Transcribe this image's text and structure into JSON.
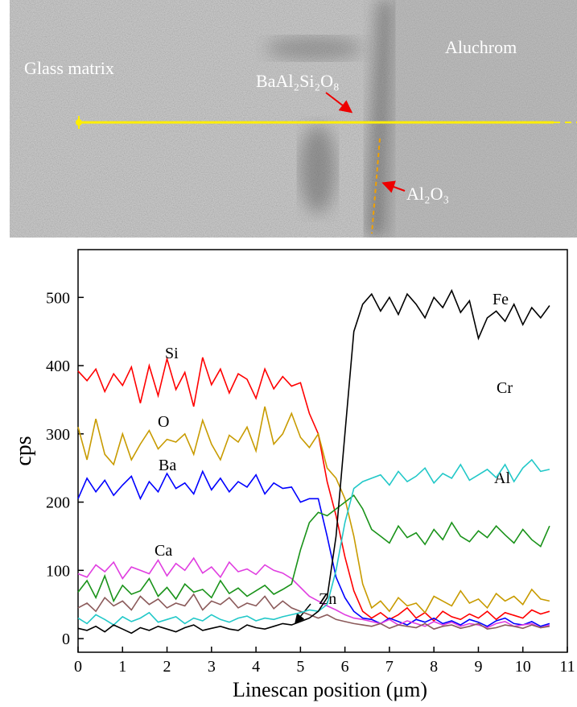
{
  "image_labels": [
    "Glass matrix",
    "Aluchrom",
    "BaAl₂Si₂O₈",
    "Al₂O₃"
  ],
  "chart_data": {
    "type": "line",
    "xlabel": "Linescan position (μm)",
    "ylabel": "cps",
    "xlim": [
      0,
      11
    ],
    "ylim": [
      -20,
      570
    ],
    "xticks": [
      0,
      1,
      2,
      3,
      4,
      5,
      6,
      7,
      8,
      9,
      10,
      11
    ],
    "yticks": [
      0,
      100,
      200,
      300,
      400,
      500
    ],
    "x": [
      0,
      0.2,
      0.4,
      0.6,
      0.8,
      1.0,
      1.2,
      1.4,
      1.6,
      1.8,
      2.0,
      2.2,
      2.4,
      2.6,
      2.8,
      3.0,
      3.2,
      3.4,
      3.6,
      3.8,
      4.0,
      4.2,
      4.4,
      4.6,
      4.8,
      5.0,
      5.2,
      5.4,
      5.6,
      5.8,
      6.0,
      6.2,
      6.4,
      6.6,
      6.8,
      7.0,
      7.2,
      7.4,
      7.6,
      7.8,
      8.0,
      8.2,
      8.4,
      8.6,
      8.8,
      9.0,
      9.2,
      9.4,
      9.6,
      9.8,
      10.0,
      10.2,
      10.4,
      10.6
    ],
    "series": [
      {
        "name": "Si",
        "color": "#ff0000",
        "values": [
          392,
          378,
          395,
          362,
          388,
          371,
          398,
          345,
          400,
          356,
          410,
          365,
          390,
          340,
          412,
          372,
          395,
          360,
          388,
          380,
          352,
          395,
          366,
          384,
          370,
          375,
          330,
          300,
          230,
          180,
          120,
          70,
          40,
          30,
          38,
          28,
          35,
          45,
          30,
          38,
          26,
          40,
          32,
          28,
          36,
          30,
          40,
          28,
          38,
          34,
          30,
          42,
          36,
          40
        ]
      },
      {
        "name": "O",
        "color": "#c89b00",
        "values": [
          310,
          262,
          322,
          270,
          255,
          300,
          262,
          285,
          305,
          278,
          292,
          288,
          300,
          270,
          320,
          285,
          262,
          298,
          288,
          310,
          275,
          340,
          285,
          300,
          330,
          295,
          280,
          300,
          250,
          235,
          205,
          150,
          80,
          45,
          55,
          40,
          60,
          48,
          52,
          38,
          62,
          55,
          48,
          70,
          52,
          58,
          45,
          66,
          55,
          62,
          50,
          72,
          58,
          55
        ]
      },
      {
        "name": "Ba",
        "color": "#0000ff",
        "values": [
          205,
          235,
          215,
          232,
          210,
          225,
          238,
          205,
          230,
          215,
          242,
          220,
          228,
          212,
          245,
          218,
          235,
          215,
          230,
          222,
          240,
          212,
          228,
          220,
          222,
          200,
          205,
          205,
          150,
          90,
          60,
          40,
          30,
          28,
          22,
          30,
          25,
          20,
          28,
          24,
          30,
          22,
          26,
          20,
          28,
          24,
          18,
          26,
          30,
          22,
          20,
          25,
          18,
          22
        ]
      },
      {
        "name": "Ca",
        "color": "#e03ee0",
        "values": [
          95,
          90,
          108,
          98,
          112,
          88,
          105,
          100,
          95,
          115,
          92,
          110,
          100,
          118,
          96,
          105,
          90,
          112,
          98,
          102,
          94,
          108,
          100,
          96,
          88,
          75,
          62,
          55,
          48,
          42,
          35,
          30,
          28,
          25,
          22,
          28,
          20,
          26,
          22,
          18,
          25,
          20,
          24,
          18,
          22,
          20,
          16,
          22,
          25,
          18,
          20,
          22,
          16,
          20
        ]
      },
      {
        "name": "Al",
        "color": "#1a931a",
        "values": [
          68,
          85,
          60,
          92,
          55,
          78,
          65,
          70,
          88,
          62,
          75,
          58,
          80,
          68,
          72,
          60,
          85,
          66,
          74,
          62,
          70,
          78,
          65,
          72,
          80,
          130,
          170,
          185,
          180,
          190,
          200,
          210,
          190,
          160,
          150,
          140,
          165,
          148,
          155,
          138,
          160,
          145,
          170,
          150,
          142,
          158,
          148,
          165,
          152,
          140,
          160,
          145,
          135,
          165
        ]
      },
      {
        "name": "Zn",
        "color": "#8b5a5a",
        "values": [
          45,
          52,
          40,
          60,
          48,
          55,
          42,
          62,
          50,
          58,
          45,
          52,
          48,
          65,
          42,
          55,
          50,
          60,
          45,
          52,
          48,
          62,
          44,
          55,
          45,
          40,
          35,
          30,
          35,
          28,
          25,
          22,
          20,
          18,
          22,
          15,
          20,
          18,
          16,
          22,
          14,
          18,
          20,
          15,
          18,
          22,
          14,
          16,
          20,
          18,
          15,
          20,
          16,
          18
        ]
      },
      {
        "name": "Cr",
        "color": "#22c8c8",
        "values": [
          30,
          22,
          35,
          28,
          20,
          32,
          25,
          30,
          38,
          24,
          28,
          32,
          22,
          30,
          26,
          35,
          28,
          24,
          30,
          33,
          26,
          30,
          28,
          32,
          35,
          38,
          42,
          40,
          50,
          100,
          170,
          220,
          230,
          235,
          240,
          225,
          245,
          230,
          238,
          250,
          228,
          242,
          235,
          255,
          232,
          240,
          248,
          236,
          255,
          230,
          250,
          262,
          245,
          248
        ]
      },
      {
        "name": "Fe",
        "color": "#000000",
        "values": [
          15,
          12,
          18,
          10,
          20,
          14,
          8,
          16,
          12,
          18,
          14,
          10,
          16,
          20,
          12,
          15,
          18,
          14,
          12,
          20,
          16,
          14,
          18,
          22,
          20,
          25,
          30,
          40,
          60,
          150,
          300,
          450,
          490,
          505,
          480,
          500,
          475,
          505,
          490,
          470,
          500,
          485,
          510,
          478,
          495,
          440,
          470,
          480,
          465,
          490,
          460,
          485,
          470,
          488
        ]
      }
    ]
  }
}
